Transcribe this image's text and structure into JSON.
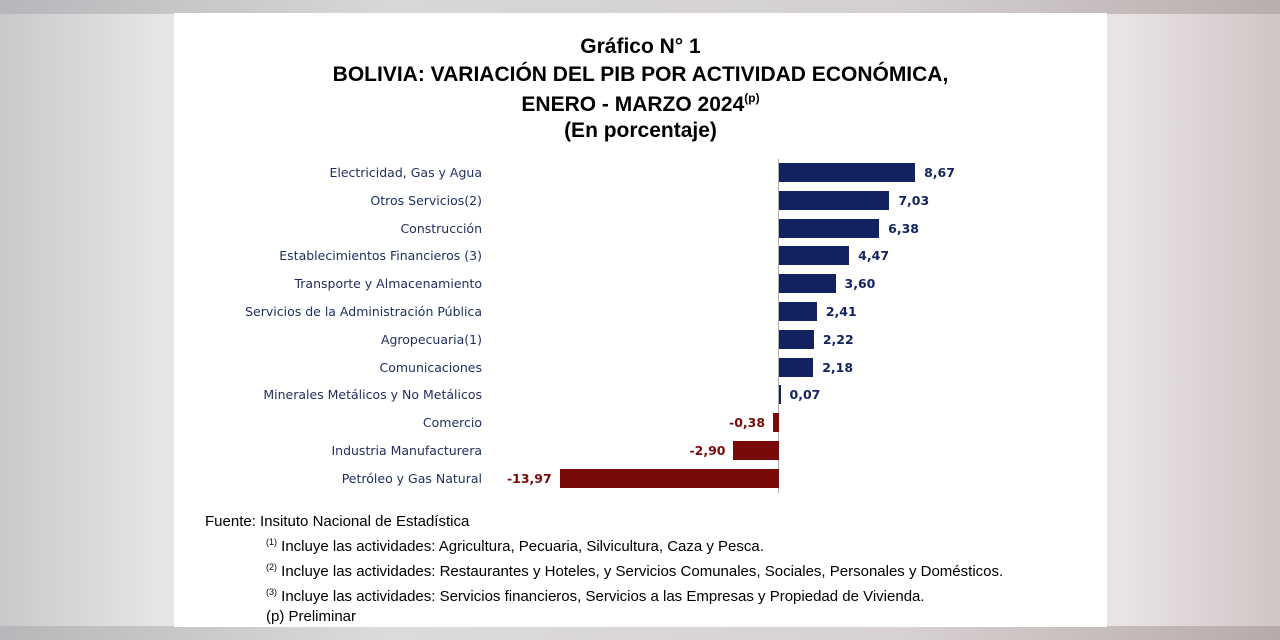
{
  "chart_data": {
    "type": "bar",
    "orientation": "horizontal",
    "title_lines": [
      "Gráfico N° 1",
      "BOLIVIA: VARIACIÓN DEL PIB POR ACTIVIDAD ECONÓMICA,",
      "ENERO - MARZO 2024",
      "(En porcentaje)"
    ],
    "title_superscript": "(p)",
    "categories": [
      "Electricidad, Gas y Agua",
      "Otros Servicios(2)",
      "Construcción",
      "Establecimientos Financieros (3)",
      "Transporte y Almacenamiento",
      "Servicios de la Administración Pública",
      "Agropecuaria(1)",
      "Comunicaciones",
      "Minerales Metálicos y No Metálicos",
      "Comercio",
      "Industria Manufacturera",
      "Petróleo y Gas Natural"
    ],
    "values": [
      8.67,
      7.03,
      6.38,
      4.47,
      3.6,
      2.41,
      2.22,
      2.18,
      0.07,
      -0.38,
      -2.9,
      -13.97
    ],
    "value_labels": [
      "8,67",
      "7,03",
      "6,38",
      "4,47",
      "3,60",
      "2,41",
      "2,22",
      "2,18",
      "0,07",
      "-0,38",
      "-2,90",
      "-13,97"
    ],
    "colors": {
      "positive": "#12235f",
      "negative": "#7a0a0a",
      "label_text": "#1f2d5c"
    },
    "xlim": [
      -14,
      9
    ],
    "grid": false,
    "legend": "none"
  },
  "notes": {
    "source": "Fuente: Insituto Nacional de Estadística",
    "footnotes": [
      {
        "mark": "(1)",
        "text": "Incluye las actividades: Agricultura, Pecuaria, Silvicultura, Caza y Pesca."
      },
      {
        "mark": "(2)",
        "text": "Incluye las actividades: Restaurantes y Hoteles, y Servicios Comunales, Sociales, Personales y Domésticos."
      },
      {
        "mark": "(3)",
        "text": "Incluye las actividades: Servicios financieros, Servicios a las Empresas y Propiedad de Vivienda."
      }
    ],
    "preliminary": "(p) Preliminar"
  }
}
